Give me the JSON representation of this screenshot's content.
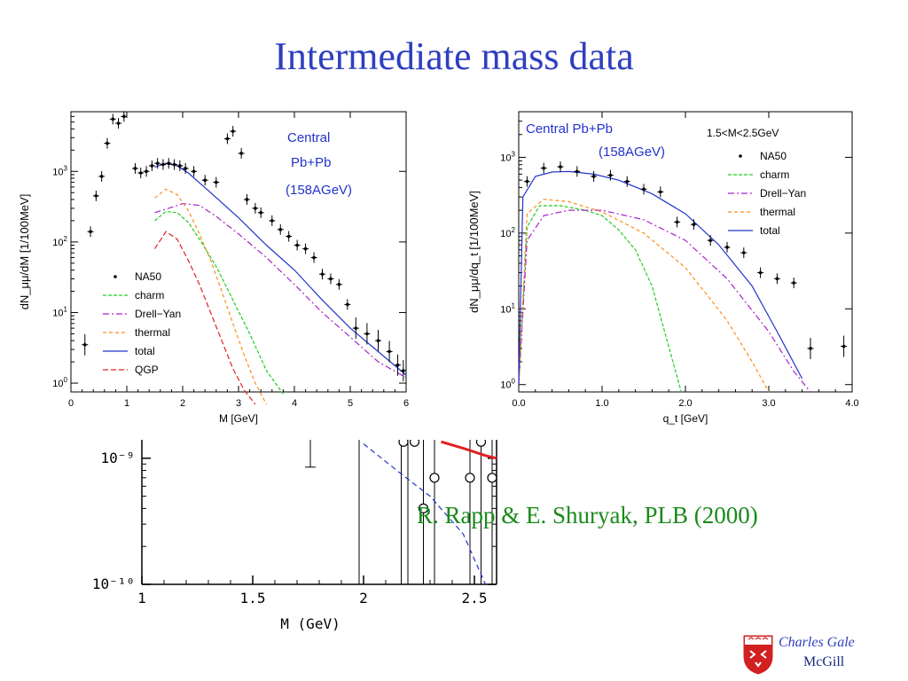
{
  "slide": {
    "title": "Intermediate mass data",
    "citation": "R. Rapp & E. Shuryak, PLB (2000)",
    "author": "Charles Gale",
    "affiliation": "McGill"
  },
  "colors": {
    "title": "#2f3fbf",
    "na50": "#000000",
    "charm": "#22cc22",
    "drell_yan": "#aa22cc",
    "thermal": "#ff8c1a",
    "total": "#2233cc",
    "qgp": "#e02020",
    "annotation": "#2233cc",
    "citation": "#1a8a1a"
  },
  "chart_data": [
    {
      "type": "line",
      "xlabel": "M [GeV]",
      "ylabel": "dN_μμ/dM [1/100MeV]",
      "xlim": [
        0,
        6
      ],
      "ylim": [
        0.75,
        7000
      ],
      "yscale": "log",
      "xticks": [
        "0",
        "1",
        "2",
        "3",
        "4",
        "5",
        "6"
      ],
      "yticks": [
        "10^0",
        "10^1",
        "10^2",
        "10^3"
      ],
      "annotations": [
        "Central",
        "Pb+Pb",
        "(158AGeV)"
      ],
      "legend_position": "bottom-left",
      "legend": [
        "NA50",
        "charm",
        "Drell−Yan",
        "thermal",
        "total",
        "QGP"
      ],
      "points": {
        "name": "NA50",
        "x": [
          0.25,
          0.35,
          0.45,
          0.55,
          0.65,
          0.75,
          0.85,
          0.95,
          1.15,
          1.25,
          1.35,
          1.45,
          1.55,
          1.65,
          1.75,
          1.85,
          1.95,
          2.05,
          2.2,
          2.4,
          2.6,
          2.8,
          2.9,
          3.05,
          3.15,
          3.3,
          3.4,
          3.6,
          3.75,
          3.9,
          4.05,
          4.2,
          4.35,
          4.5,
          4.65,
          4.8,
          4.95,
          5.1,
          5.3,
          5.5,
          5.7,
          5.85,
          5.95
        ],
        "y": [
          3.5,
          140,
          450,
          850,
          2500,
          5500,
          4800,
          6000,
          1100,
          950,
          1000,
          1200,
          1300,
          1250,
          1300,
          1250,
          1200,
          1100,
          1000,
          750,
          700,
          2900,
          3700,
          1800,
          400,
          300,
          260,
          200,
          150,
          120,
          90,
          80,
          60,
          35,
          30,
          25,
          13,
          6,
          5,
          4,
          2.8,
          1.8,
          1.5
        ]
      },
      "series": [
        {
          "name": "charm",
          "x": [
            1.5,
            1.7,
            1.9,
            2.1,
            2.3,
            2.6,
            2.9,
            3.2,
            3.5,
            3.8
          ],
          "y": [
            200,
            270,
            260,
            190,
            110,
            45,
            15,
            5,
            1.5,
            0.7
          ]
        },
        {
          "name": "Drell−Yan",
          "x": [
            1.5,
            1.8,
            2.0,
            2.3,
            2.6,
            3.0,
            3.5,
            4.0,
            4.5,
            5.0,
            5.5,
            6.0
          ],
          "y": [
            260,
            310,
            350,
            330,
            230,
            130,
            60,
            25,
            10,
            4.5,
            2,
            1.2
          ]
        },
        {
          "name": "thermal",
          "x": [
            1.5,
            1.7,
            1.9,
            2.1,
            2.3,
            2.5,
            2.7,
            2.9,
            3.1,
            3.3,
            3.5
          ],
          "y": [
            420,
            560,
            470,
            280,
            130,
            55,
            20,
            7,
            2.5,
            1,
            0.5
          ]
        },
        {
          "name": "total",
          "x": [
            1.5,
            1.7,
            1.9,
            2.1,
            2.5,
            3.0,
            3.5,
            4.0,
            4.5,
            5.0,
            5.5,
            6.0
          ],
          "y": [
            1150,
            1300,
            1200,
            950,
            500,
            220,
            90,
            40,
            15,
            6,
            2.8,
            1.3
          ]
        },
        {
          "name": "QGP",
          "x": [
            1.5,
            1.7,
            1.9,
            2.1,
            2.3,
            2.5,
            2.7,
            2.9,
            3.1,
            3.3
          ],
          "y": [
            80,
            140,
            110,
            55,
            25,
            10,
            4,
            1.6,
            0.8,
            0.5
          ]
        }
      ]
    },
    {
      "type": "line",
      "xlabel": "q_t [GeV]",
      "ylabel": "dN_μμ/dq_t [1/100MeV]",
      "xlim": [
        0,
        4
      ],
      "ylim": [
        0.8,
        4000
      ],
      "yscale": "log",
      "xticks": [
        "0.0",
        "1.0",
        "2.0",
        "3.0",
        "4.0"
      ],
      "yticks": [
        "10^0",
        "10^1",
        "10^2",
        "10^3"
      ],
      "annotations": [
        "Central Pb+Pb",
        "(158AGeV)",
        "1.5<M<2.5GeV"
      ],
      "legend_position": "top-right",
      "legend": [
        "NA50",
        "charm",
        "Drell−Yan",
        "thermal",
        "total"
      ],
      "points": {
        "name": "NA50",
        "x": [
          0.1,
          0.3,
          0.5,
          0.7,
          0.9,
          1.1,
          1.3,
          1.5,
          1.7,
          1.9,
          2.1,
          2.3,
          2.5,
          2.7,
          2.9,
          3.1,
          3.3,
          3.5,
          3.9
        ],
        "y": [
          480,
          720,
          750,
          650,
          560,
          580,
          480,
          380,
          350,
          140,
          130,
          80,
          65,
          55,
          30,
          25,
          22,
          3,
          3.2
        ]
      },
      "series": [
        {
          "name": "charm",
          "x": [
            0.0,
            0.1,
            0.25,
            0.5,
            0.8,
            1.0,
            1.2,
            1.4,
            1.6,
            1.75,
            1.85,
            1.95
          ],
          "y": [
            1,
            120,
            230,
            230,
            200,
            170,
            110,
            60,
            20,
            5,
            2,
            0.8
          ]
        },
        {
          "name": "Drell−Yan",
          "x": [
            0.0,
            0.1,
            0.3,
            0.6,
            1.0,
            1.5,
            2.0,
            2.5,
            3.0,
            3.3,
            3.5
          ],
          "y": [
            1,
            80,
            170,
            200,
            200,
            150,
            80,
            25,
            5,
            1.5,
            0.8
          ]
        },
        {
          "name": "thermal",
          "x": [
            0.0,
            0.1,
            0.3,
            0.6,
            1.0,
            1.5,
            2.0,
            2.5,
            2.8,
            3.0
          ],
          "y": [
            1,
            180,
            280,
            260,
            190,
            100,
            35,
            7,
            2,
            0.8
          ]
        },
        {
          "name": "total",
          "x": [
            0.0,
            0.05,
            0.2,
            0.4,
            0.6,
            0.9,
            1.2,
            1.6,
            2.0,
            2.4,
            2.8,
            3.1,
            3.4
          ],
          "y": [
            1,
            300,
            560,
            640,
            650,
            600,
            500,
            330,
            180,
            70,
            20,
            5,
            1.2
          ]
        }
      ]
    },
    {
      "type": "line",
      "xlabel": "M (GeV)",
      "xlim": [
        1,
        2.6
      ],
      "ylim": [
        1e-10,
        1.4e-09
      ],
      "yscale": "log",
      "xticks": [
        "1",
        "1.5",
        "2",
        "2.5"
      ],
      "yticks": [
        "10⁻⁹",
        "10⁻¹⁰"
      ],
      "open_points": {
        "x": [
          2.18,
          2.23,
          2.27,
          2.32,
          2.48,
          2.53,
          2.58
        ],
        "y": [
          1.35e-09,
          1.35e-09,
          4e-10,
          7e-10,
          7e-10,
          1.35e-09,
          7e-10
        ]
      },
      "series": [
        {
          "name": "",
          "color": "blue-dashed",
          "x": [
            2.0,
            2.15,
            2.3,
            2.45,
            2.55
          ],
          "y": [
            1.3e-09,
            8e-10,
            5e-10,
            2.5e-10,
            1e-10
          ]
        },
        {
          "name": "",
          "color": "green-dashed",
          "x": [
            2.35,
            2.45,
            2.55,
            2.6
          ],
          "y": [
            1.35e-09,
            1.2e-09,
            1.05e-09,
            1e-09
          ]
        },
        {
          "name": "",
          "color": "red",
          "x": [
            2.35,
            2.45,
            2.55,
            2.6
          ],
          "y": [
            1.35e-09,
            1.2e-09,
            1.05e-09,
            1e-09
          ]
        }
      ]
    }
  ]
}
